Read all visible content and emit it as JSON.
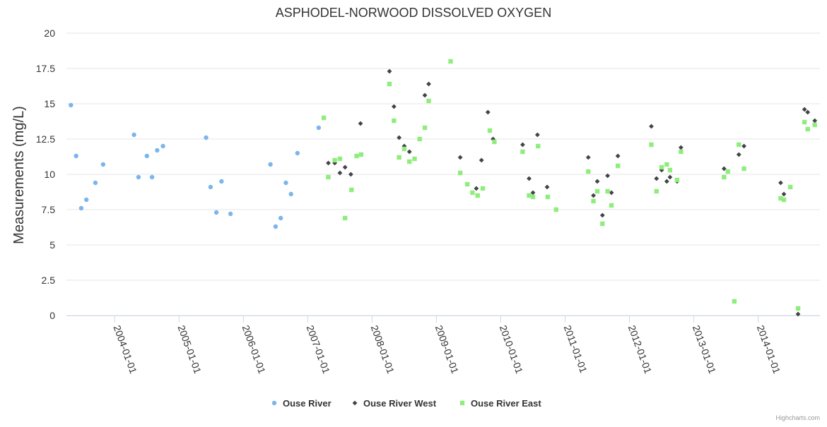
{
  "chart_data": {
    "type": "scatter",
    "title": "ASPHODEL-NORWOOD DISSOLVED OXYGEN",
    "xlabel": "",
    "ylabel": "Measurements (mg/L)",
    "ylim": [
      0,
      20
    ],
    "yticks": [
      "0",
      "2.5",
      "5",
      "7.5",
      "10",
      "12.5",
      "15",
      "17.5",
      "20"
    ],
    "xlim": [
      2003.25,
      2014.96
    ],
    "xticks": [
      {
        "value": 2004,
        "label": "2004-01-01"
      },
      {
        "value": 2005,
        "label": "2005-01-01"
      },
      {
        "value": 2006,
        "label": "2006-01-01"
      },
      {
        "value": 2007,
        "label": "2007-01-01"
      },
      {
        "value": 2008,
        "label": "2008-01-01"
      },
      {
        "value": 2009,
        "label": "2009-01-01"
      },
      {
        "value": 2010,
        "label": "2010-01-01"
      },
      {
        "value": 2011,
        "label": "2011-01-01"
      },
      {
        "value": 2012,
        "label": "2012-01-01"
      },
      {
        "value": 2013,
        "label": "2013-01-01"
      },
      {
        "value": 2014,
        "label": "2014-01-01"
      }
    ],
    "grid": true,
    "legend_position": "bottom-center",
    "credits": "Highcharts.com",
    "series": [
      {
        "name": "Ouse River",
        "color": "#7cb5ec",
        "marker": "circle",
        "points": [
          [
            2003.32,
            14.9
          ],
          [
            2003.4,
            11.3
          ],
          [
            2003.48,
            7.6
          ],
          [
            2003.56,
            8.2
          ],
          [
            2003.7,
            9.4
          ],
          [
            2003.82,
            10.7
          ],
          [
            2004.3,
            12.8
          ],
          [
            2004.37,
            9.8
          ],
          [
            2004.5,
            11.3
          ],
          [
            2004.58,
            9.8
          ],
          [
            2004.66,
            11.7
          ],
          [
            2004.75,
            12.0
          ],
          [
            2005.42,
            12.6
          ],
          [
            2005.49,
            9.1
          ],
          [
            2005.58,
            7.3
          ],
          [
            2005.66,
            9.5
          ],
          [
            2005.8,
            7.2
          ],
          [
            2006.42,
            10.7
          ],
          [
            2006.5,
            6.3
          ],
          [
            2006.58,
            6.9
          ],
          [
            2006.66,
            9.4
          ],
          [
            2006.74,
            8.6
          ],
          [
            2006.84,
            11.5
          ],
          [
            2007.17,
            13.3
          ]
        ]
      },
      {
        "name": "Ouse River West",
        "color": "#434348",
        "marker": "diamond",
        "points": [
          [
            2007.32,
            10.8
          ],
          [
            2007.42,
            10.8
          ],
          [
            2007.5,
            10.1
          ],
          [
            2007.58,
            10.5
          ],
          [
            2007.67,
            10.0
          ],
          [
            2007.82,
            13.6
          ],
          [
            2008.27,
            17.3
          ],
          [
            2008.34,
            14.8
          ],
          [
            2008.42,
            12.6
          ],
          [
            2008.5,
            12.0
          ],
          [
            2008.58,
            11.6
          ],
          [
            2008.82,
            15.6
          ],
          [
            2008.88,
            16.4
          ],
          [
            2009.37,
            11.2
          ],
          [
            2009.62,
            9.0
          ],
          [
            2009.7,
            11.0
          ],
          [
            2009.8,
            14.4
          ],
          [
            2009.88,
            12.5
          ],
          [
            2010.34,
            12.1
          ],
          [
            2010.44,
            9.7
          ],
          [
            2010.5,
            8.7
          ],
          [
            2010.57,
            12.8
          ],
          [
            2010.72,
            9.1
          ],
          [
            2011.36,
            11.2
          ],
          [
            2011.44,
            8.5
          ],
          [
            2011.5,
            9.5
          ],
          [
            2011.58,
            7.1
          ],
          [
            2011.66,
            9.9
          ],
          [
            2011.72,
            8.7
          ],
          [
            2011.82,
            11.3
          ],
          [
            2012.34,
            13.4
          ],
          [
            2012.42,
            9.7
          ],
          [
            2012.5,
            10.3
          ],
          [
            2012.58,
            9.5
          ],
          [
            2012.63,
            9.8
          ],
          [
            2012.74,
            9.5
          ],
          [
            2012.8,
            11.9
          ],
          [
            2013.47,
            10.4
          ],
          [
            2013.53,
            10.2
          ],
          [
            2013.7,
            11.4
          ],
          [
            2013.78,
            12.0
          ],
          [
            2014.35,
            9.4
          ],
          [
            2014.4,
            8.6
          ],
          [
            2014.62,
            0.1
          ],
          [
            2014.72,
            14.6
          ],
          [
            2014.77,
            14.4
          ],
          [
            2014.88,
            13.8
          ]
        ]
      },
      {
        "name": "Ouse River East",
        "color": "#90ed7d",
        "marker": "square",
        "points": [
          [
            2007.25,
            14.0
          ],
          [
            2007.32,
            9.8
          ],
          [
            2007.42,
            11.0
          ],
          [
            2007.5,
            11.1
          ],
          [
            2007.58,
            6.9
          ],
          [
            2007.68,
            8.9
          ],
          [
            2007.76,
            11.3
          ],
          [
            2007.83,
            11.4
          ],
          [
            2008.27,
            16.4
          ],
          [
            2008.34,
            13.8
          ],
          [
            2008.42,
            11.2
          ],
          [
            2008.5,
            11.8
          ],
          [
            2008.58,
            10.9
          ],
          [
            2008.66,
            11.1
          ],
          [
            2008.74,
            12.5
          ],
          [
            2008.82,
            13.3
          ],
          [
            2008.88,
            15.2
          ],
          [
            2009.22,
            18.0
          ],
          [
            2009.37,
            10.1
          ],
          [
            2009.48,
            9.3
          ],
          [
            2009.56,
            8.7
          ],
          [
            2009.64,
            8.5
          ],
          [
            2009.72,
            9.0
          ],
          [
            2009.83,
            13.1
          ],
          [
            2009.9,
            12.3
          ],
          [
            2010.34,
            11.6
          ],
          [
            2010.44,
            8.5
          ],
          [
            2010.5,
            8.4
          ],
          [
            2010.58,
            12.0
          ],
          [
            2010.73,
            8.4
          ],
          [
            2010.86,
            7.5
          ],
          [
            2011.36,
            10.2
          ],
          [
            2011.44,
            8.1
          ],
          [
            2011.5,
            8.8
          ],
          [
            2011.58,
            6.5
          ],
          [
            2011.66,
            8.8
          ],
          [
            2011.72,
            7.8
          ],
          [
            2011.82,
            10.6
          ],
          [
            2012.34,
            12.1
          ],
          [
            2012.42,
            8.8
          ],
          [
            2012.5,
            10.5
          ],
          [
            2012.58,
            10.7
          ],
          [
            2012.63,
            10.3
          ],
          [
            2012.74,
            9.6
          ],
          [
            2012.8,
            11.6
          ],
          [
            2013.47,
            9.8
          ],
          [
            2013.53,
            10.2
          ],
          [
            2013.63,
            1.0
          ],
          [
            2013.7,
            12.1
          ],
          [
            2013.78,
            10.4
          ],
          [
            2014.35,
            8.3
          ],
          [
            2014.4,
            8.2
          ],
          [
            2014.5,
            9.1
          ],
          [
            2014.62,
            0.5
          ],
          [
            2014.72,
            13.7
          ],
          [
            2014.77,
            13.2
          ],
          [
            2014.88,
            13.5
          ]
        ]
      }
    ]
  }
}
